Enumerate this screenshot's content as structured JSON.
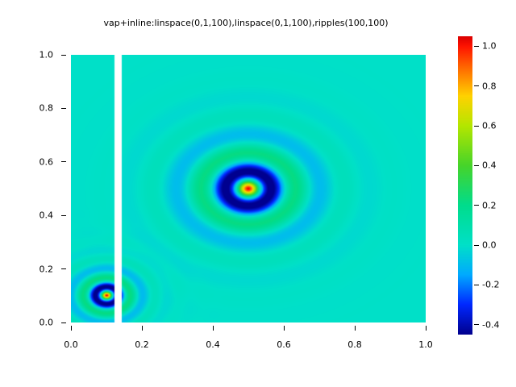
{
  "title": "vap+inline:linspace(0,1,100),linspace(0,1,100),ripples(100,100)",
  "chart_data": {
    "type": "heatmap",
    "title": "vap+inline:linspace(0,1,100),linspace(0,1,100),ripples(100,100)",
    "xlabel": "",
    "ylabel": "",
    "xlim": [
      0,
      1
    ],
    "ylim": [
      0,
      1
    ],
    "x_tick_values": [
      0.0,
      0.2,
      0.4,
      0.6,
      0.8,
      1.0
    ],
    "x_tick_labels": [
      "0.0",
      "0.2",
      "0.4",
      "0.6",
      "0.8",
      "1.0"
    ],
    "y_tick_values": [
      1.0,
      0.8,
      0.6,
      0.4,
      0.2,
      0.0
    ],
    "y_tick_labels": [
      "1.0",
      "0.8",
      "0.6",
      "0.4",
      "0.2",
      "0.0"
    ],
    "grid": false,
    "grid_size": [
      100,
      100
    ],
    "value_range": [
      -0.45,
      1.05
    ],
    "background_value": 0.0,
    "peaks": [
      {
        "center": [
          0.5,
          0.5
        ],
        "peak_value": 1.05,
        "first_dark_ring_radius": 0.07
      },
      {
        "center": [
          0.1,
          0.1
        ],
        "peak_value": 1.05,
        "first_dark_ring_radius": 0.035
      }
    ],
    "ripple_components": [
      {
        "center": [
          0.5,
          0.5
        ],
        "amplitude": 1.05,
        "wavenumber": 45,
        "damping": 11.5
      },
      {
        "center": [
          0.1,
          0.1
        ],
        "amplitude": 1.05,
        "wavenumber": 90,
        "damping": 23
      }
    ],
    "missing_data_stripe": {
      "x_min": 0.122,
      "x_max": 0.142,
      "color": "#ffffff"
    },
    "colormap_name": "jet-like rainbow",
    "colormap_stops": [
      {
        "v": -0.45,
        "color": "#00008f"
      },
      {
        "v": -0.3,
        "color": "#0028ff"
      },
      {
        "v": -0.15,
        "color": "#00aaff"
      },
      {
        "v": 0.0,
        "color": "#00e0c8"
      },
      {
        "v": 0.2,
        "color": "#00dc8c"
      },
      {
        "v": 0.4,
        "color": "#46d42a"
      },
      {
        "v": 0.6,
        "color": "#b4e600"
      },
      {
        "v": 0.75,
        "color": "#ffd200"
      },
      {
        "v": 0.9,
        "color": "#ff6400"
      },
      {
        "v": 1.0,
        "color": "#ff1400"
      },
      {
        "v": 1.05,
        "color": "#dc0000"
      }
    ],
    "colorbar": {
      "position": "right",
      "tick_values": [
        1.0,
        0.8,
        0.6,
        0.4,
        0.2,
        0.0,
        -0.2,
        -0.4
      ],
      "tick_labels": [
        "1.0",
        "0.8",
        "0.6",
        "0.4",
        "0.2",
        "0.0",
        "-0.2",
        "-0.4"
      ]
    }
  }
}
